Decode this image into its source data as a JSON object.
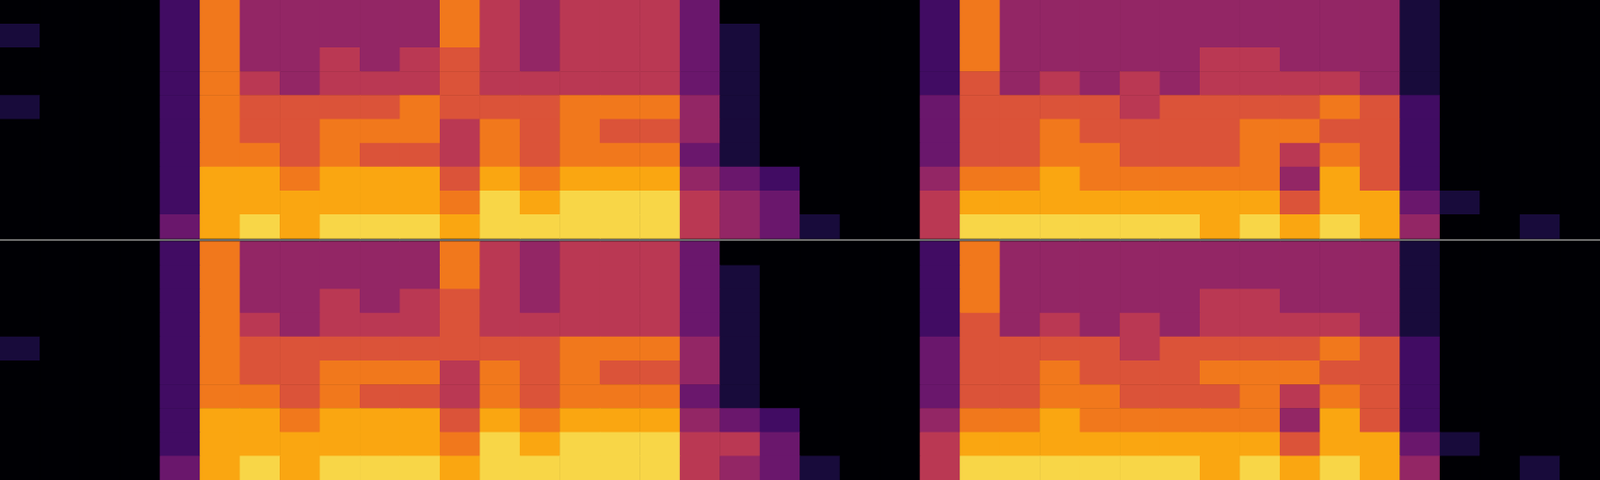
{
  "chart_data": [
    {
      "type": "heatmap",
      "tick_labels": false,
      "grid": false,
      "color_range": [
        0,
        10
      ],
      "cells": [
        [
          0,
          0,
          0,
          0,
          2,
          7,
          4,
          4,
          4,
          4,
          4,
          7,
          5,
          4,
          5,
          5,
          5,
          3,
          0,
          0,
          0,
          0,
          0,
          2,
          7,
          4,
          4,
          4,
          4,
          4,
          4,
          4,
          4,
          4,
          4,
          1,
          0,
          0,
          0,
          0
        ],
        [
          1,
          0,
          0,
          0,
          2,
          7,
          4,
          4,
          4,
          4,
          4,
          7,
          5,
          4,
          5,
          5,
          5,
          3,
          1,
          0,
          0,
          0,
          0,
          2,
          7,
          4,
          4,
          4,
          4,
          4,
          4,
          4,
          4,
          4,
          4,
          1,
          0,
          0,
          0,
          0
        ],
        [
          0,
          0,
          0,
          0,
          2,
          7,
          4,
          4,
          5,
          4,
          5,
          6,
          5,
          4,
          5,
          5,
          5,
          3,
          1,
          0,
          0,
          0,
          0,
          2,
          7,
          4,
          4,
          4,
          4,
          4,
          5,
          5,
          4,
          4,
          4,
          1,
          0,
          0,
          0,
          0
        ],
        [
          0,
          0,
          0,
          0,
          2,
          7,
          5,
          4,
          5,
          5,
          5,
          6,
          5,
          5,
          5,
          5,
          5,
          3,
          1,
          0,
          0,
          0,
          0,
          2,
          6,
          4,
          5,
          4,
          5,
          4,
          5,
          5,
          5,
          5,
          4,
          1,
          0,
          0,
          0,
          0
        ],
        [
          1,
          0,
          0,
          0,
          2,
          7,
          6,
          6,
          6,
          6,
          7,
          6,
          6,
          6,
          7,
          7,
          7,
          4,
          1,
          0,
          0,
          0,
          0,
          3,
          6,
          6,
          6,
          6,
          5,
          6,
          6,
          6,
          6,
          7,
          6,
          2,
          0,
          0,
          0,
          0
        ],
        [
          0,
          0,
          0,
          0,
          2,
          7,
          6,
          6,
          7,
          7,
          7,
          5,
          7,
          6,
          7,
          6,
          6,
          4,
          1,
          0,
          0,
          0,
          0,
          3,
          6,
          6,
          7,
          6,
          6,
          6,
          6,
          7,
          7,
          6,
          6,
          2,
          0,
          0,
          0,
          0
        ],
        [
          0,
          0,
          0,
          0,
          2,
          7,
          7,
          6,
          7,
          6,
          6,
          5,
          7,
          6,
          7,
          7,
          7,
          3,
          1,
          0,
          0,
          0,
          0,
          3,
          6,
          6,
          7,
          7,
          6,
          6,
          6,
          7,
          5,
          7,
          6,
          2,
          0,
          0,
          0,
          0
        ],
        [
          0,
          0,
          0,
          0,
          2,
          8,
          8,
          7,
          8,
          8,
          8,
          6,
          8,
          7,
          8,
          8,
          8,
          4,
          3,
          2,
          0,
          0,
          0,
          4,
          7,
          7,
          8,
          7,
          7,
          7,
          7,
          7,
          4,
          8,
          6,
          2,
          0,
          0,
          0,
          0
        ],
        [
          0,
          0,
          0,
          0,
          2,
          8,
          8,
          8,
          8,
          8,
          8,
          7,
          9,
          8,
          9,
          9,
          9,
          5,
          4,
          3,
          0,
          0,
          0,
          5,
          8,
          8,
          8,
          8,
          8,
          8,
          8,
          8,
          6,
          8,
          8,
          3,
          1,
          0,
          0,
          0
        ],
        [
          0,
          0,
          0,
          0,
          3,
          8,
          9,
          8,
          9,
          9,
          9,
          8,
          9,
          9,
          9,
          9,
          9,
          5,
          4,
          3,
          1,
          0,
          0,
          5,
          9,
          9,
          9,
          9,
          9,
          9,
          8,
          9,
          8,
          9,
          8,
          4,
          0,
          0,
          1,
          0
        ]
      ]
    },
    {
      "type": "heatmap",
      "tick_labels": false,
      "grid": false,
      "color_range": [
        0,
        10
      ],
      "cells": [
        [
          0,
          0,
          0,
          0,
          2,
          7,
          4,
          4,
          4,
          4,
          4,
          7,
          5,
          4,
          5,
          5,
          5,
          3,
          0,
          0,
          0,
          0,
          0,
          2,
          7,
          4,
          4,
          4,
          4,
          4,
          4,
          4,
          4,
          4,
          4,
          1,
          0,
          0,
          0,
          0
        ],
        [
          0,
          0,
          0,
          0,
          2,
          7,
          4,
          4,
          4,
          4,
          4,
          7,
          5,
          4,
          5,
          5,
          5,
          3,
          1,
          0,
          0,
          0,
          0,
          2,
          7,
          4,
          4,
          4,
          4,
          4,
          4,
          4,
          4,
          4,
          4,
          1,
          0,
          0,
          0,
          0
        ],
        [
          0,
          0,
          0,
          0,
          2,
          7,
          4,
          4,
          5,
          4,
          5,
          6,
          5,
          4,
          5,
          5,
          5,
          3,
          1,
          0,
          0,
          0,
          0,
          2,
          7,
          4,
          4,
          4,
          4,
          4,
          5,
          5,
          4,
          4,
          4,
          1,
          0,
          0,
          0,
          0
        ],
        [
          0,
          0,
          0,
          0,
          2,
          7,
          5,
          4,
          5,
          5,
          5,
          6,
          5,
          5,
          5,
          5,
          5,
          3,
          1,
          0,
          0,
          0,
          0,
          2,
          6,
          4,
          5,
          4,
          5,
          4,
          5,
          5,
          5,
          5,
          4,
          1,
          0,
          0,
          0,
          0
        ],
        [
          1,
          0,
          0,
          0,
          2,
          7,
          6,
          6,
          6,
          6,
          6,
          6,
          6,
          6,
          7,
          7,
          7,
          4,
          1,
          0,
          0,
          0,
          0,
          3,
          6,
          6,
          6,
          6,
          5,
          6,
          6,
          6,
          6,
          7,
          6,
          2,
          0,
          0,
          0,
          0
        ],
        [
          0,
          0,
          0,
          0,
          2,
          7,
          6,
          6,
          7,
          7,
          7,
          5,
          7,
          6,
          7,
          6,
          6,
          4,
          1,
          0,
          0,
          0,
          0,
          3,
          6,
          6,
          7,
          6,
          6,
          6,
          7,
          7,
          7,
          6,
          6,
          2,
          0,
          0,
          0,
          0
        ],
        [
          0,
          0,
          0,
          0,
          2,
          7,
          7,
          6,
          7,
          6,
          6,
          5,
          7,
          6,
          7,
          7,
          7,
          3,
          1,
          0,
          0,
          0,
          0,
          3,
          6,
          6,
          7,
          7,
          6,
          6,
          6,
          7,
          5,
          7,
          6,
          2,
          0,
          0,
          0,
          0
        ],
        [
          0,
          0,
          0,
          0,
          2,
          8,
          8,
          7,
          8,
          8,
          8,
          6,
          8,
          7,
          8,
          8,
          8,
          4,
          3,
          2,
          0,
          0,
          0,
          4,
          7,
          7,
          8,
          7,
          7,
          7,
          7,
          7,
          4,
          8,
          6,
          2,
          0,
          0,
          0,
          0
        ],
        [
          0,
          0,
          0,
          0,
          2,
          8,
          8,
          8,
          8,
          8,
          8,
          7,
          9,
          8,
          9,
          9,
          9,
          5,
          5,
          3,
          0,
          0,
          0,
          5,
          8,
          8,
          8,
          8,
          8,
          8,
          8,
          8,
          6,
          8,
          8,
          3,
          1,
          0,
          0,
          0
        ],
        [
          0,
          0,
          0,
          0,
          3,
          8,
          9,
          8,
          9,
          9,
          9,
          8,
          9,
          9,
          9,
          9,
          9,
          5,
          4,
          3,
          1,
          0,
          0,
          5,
          9,
          9,
          9,
          9,
          9,
          9,
          8,
          9,
          8,
          9,
          8,
          4,
          0,
          0,
          1,
          0
        ]
      ]
    }
  ]
}
